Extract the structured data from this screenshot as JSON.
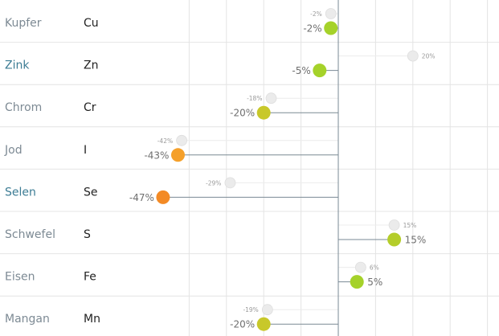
{
  "chart_data": {
    "type": "dot",
    "title": "",
    "xlabel": "",
    "ylabel": "",
    "xlim": [
      -70,
      70
    ],
    "grid": true,
    "rows": [
      {
        "name": "Kupfer",
        "symbol": "Cu",
        "reference": -2,
        "reference_label": "-2%",
        "value": -2,
        "value_label": "-2%",
        "name_color": "#7d8a94",
        "dot_color": "#a5d22a"
      },
      {
        "name": "Zink",
        "symbol": "Zn",
        "reference": 20,
        "reference_label": "20%",
        "value": -5,
        "value_label": "-5%",
        "name_color": "#3c7c94",
        "dot_color": "#a5d22a"
      },
      {
        "name": "Chrom",
        "symbol": "Cr",
        "reference": -18,
        "reference_label": "-18%",
        "value": -20,
        "value_label": "-20%",
        "name_color": "#7d8a94",
        "dot_color": "#c8c82a"
      },
      {
        "name": "Jod",
        "symbol": "I",
        "reference": -42,
        "reference_label": "-42%",
        "value": -43,
        "value_label": "-43%",
        "name_color": "#7d8a94",
        "dot_color": "#f5a02a"
      },
      {
        "name": "Selen",
        "symbol": "Se",
        "reference": -29,
        "reference_label": "-29%",
        "value": -47,
        "value_label": "-47%",
        "name_color": "#3c7c94",
        "dot_color": "#f38a25"
      },
      {
        "name": "Schwefel",
        "symbol": "S",
        "reference": 15,
        "reference_label": "15%",
        "value": 15,
        "value_label": "15%",
        "name_color": "#7d8a94",
        "dot_color": "#b4cd2a"
      },
      {
        "name": "Eisen",
        "symbol": "Fe",
        "reference": 6,
        "reference_label": "6%",
        "value": 5,
        "value_label": "5%",
        "name_color": "#7d8a94",
        "dot_color": "#a5d22a"
      },
      {
        "name": "Mangan",
        "symbol": "Mn",
        "reference": -19,
        "reference_label": "-19%",
        "value": -20,
        "value_label": "-20%",
        "name_color": "#7d8a94",
        "dot_color": "#c8c82a"
      }
    ],
    "colors": {
      "reference_dot": "#ebebeb",
      "axis_line": "#7a8a94",
      "grid_line": "#e4e4e4"
    }
  }
}
